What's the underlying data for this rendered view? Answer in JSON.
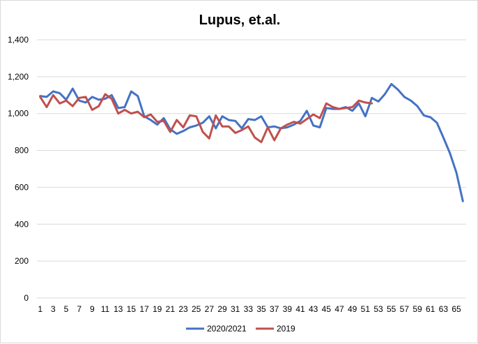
{
  "chart_data": {
    "type": "line",
    "title": "Lupus, et.al.",
    "xlabel": "",
    "ylabel": "",
    "ylim": [
      0,
      1400
    ],
    "yticks": [
      0,
      200,
      400,
      600,
      800,
      1000,
      1200,
      1400
    ],
    "ytick_labels": [
      "0",
      "200",
      "400",
      "600",
      "800",
      "1,000",
      "1,200",
      "1,400"
    ],
    "xlim": [
      1,
      66
    ],
    "xticks": [
      1,
      3,
      5,
      7,
      9,
      11,
      13,
      15,
      17,
      19,
      21,
      23,
      25,
      27,
      29,
      31,
      33,
      35,
      37,
      39,
      41,
      43,
      45,
      47,
      49,
      51,
      53,
      55,
      57,
      59,
      61,
      63,
      65
    ],
    "grid": true,
    "legend": "bottom",
    "series": [
      {
        "name": "2020/2021",
        "color": "#4472c4",
        "values": [
          1095,
          1090,
          1120,
          1110,
          1075,
          1135,
          1070,
          1060,
          1090,
          1075,
          1080,
          1100,
          1030,
          1035,
          1120,
          1095,
          985,
          965,
          940,
          975,
          915,
          890,
          905,
          925,
          935,
          950,
          985,
          920,
          985,
          965,
          960,
          920,
          970,
          965,
          985,
          925,
          930,
          920,
          925,
          940,
          960,
          1015,
          935,
          925,
          1030,
          1025,
          1025,
          1035,
          1015,
          1055,
          985,
          1085,
          1065,
          1105,
          1160,
          1130,
          1090,
          1070,
          1040,
          990,
          980,
          950,
          870,
          785,
          680,
          525
        ]
      },
      {
        "name": "2019",
        "color": "#c0504d",
        "values": [
          1090,
          1035,
          1100,
          1055,
          1070,
          1040,
          1085,
          1090,
          1020,
          1040,
          1105,
          1080,
          1000,
          1020,
          1000,
          1010,
          980,
          995,
          955,
          960,
          900,
          965,
          925,
          990,
          985,
          900,
          865,
          990,
          930,
          930,
          895,
          910,
          930,
          870,
          845,
          925,
          855,
          920,
          940,
          955,
          945,
          970,
          995,
          975,
          1055,
          1035,
          1025,
          1030,
          1035,
          1070,
          1060,
          1055
        ]
      }
    ]
  }
}
